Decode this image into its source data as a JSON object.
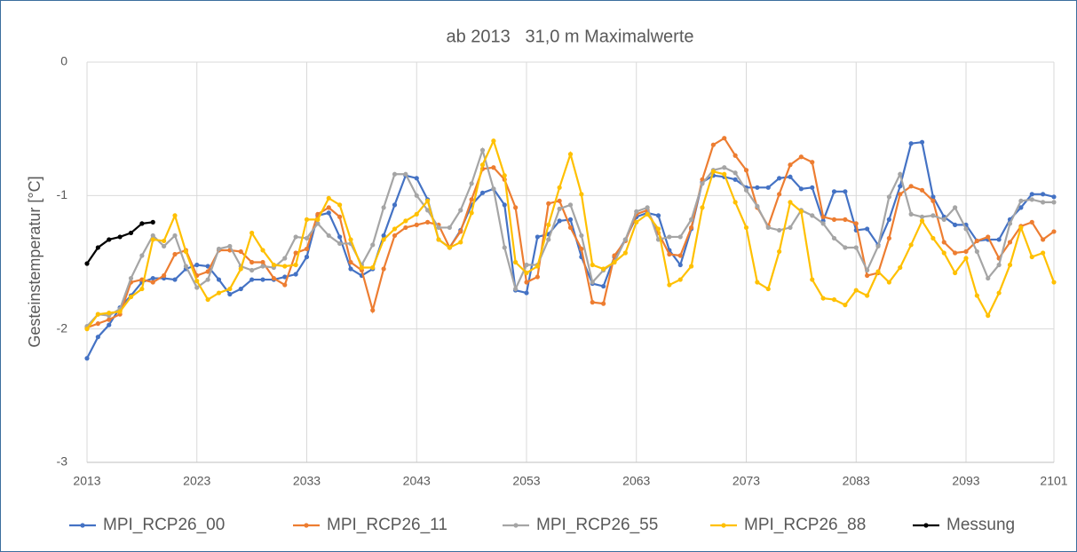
{
  "chart_data": {
    "type": "line",
    "title": "ab 2013   31,0 m Maximalwerte",
    "y_label": "Gesteinstemperatur [°C]",
    "x": [
      2013,
      2014,
      2015,
      2016,
      2017,
      2018,
      2019,
      2020,
      2021,
      2022,
      2023,
      2024,
      2025,
      2026,
      2027,
      2028,
      2029,
      2030,
      2031,
      2032,
      2033,
      2034,
      2035,
      2036,
      2037,
      2038,
      2039,
      2040,
      2041,
      2042,
      2043,
      2044,
      2045,
      2046,
      2047,
      2048,
      2049,
      2050,
      2051,
      2052,
      2053,
      2054,
      2055,
      2056,
      2057,
      2058,
      2059,
      2060,
      2061,
      2062,
      2063,
      2064,
      2065,
      2066,
      2067,
      2068,
      2069,
      2070,
      2071,
      2072,
      2073,
      2074,
      2075,
      2076,
      2077,
      2078,
      2079,
      2080,
      2081,
      2082,
      2083,
      2084,
      2085,
      2086,
      2087,
      2088,
      2089,
      2090,
      2091,
      2092,
      2093,
      2094,
      2095,
      2096,
      2097,
      2098,
      2099,
      2100,
      2101
    ],
    "xlim": [
      2013,
      2101
    ],
    "xticks": [
      2013,
      2023,
      2033,
      2043,
      2053,
      2063,
      2073,
      2083,
      2093,
      2101
    ],
    "ylim": [
      -3,
      0
    ],
    "yticks": [
      -3,
      -2,
      -1,
      0
    ],
    "grid": true,
    "legend": "bottom",
    "series": [
      {
        "name": "MPI_RCP26_00",
        "color": "#4472c4",
        "values": [
          -2.22,
          -2.06,
          -1.97,
          -1.84,
          -1.75,
          -1.65,
          -1.62,
          -1.62,
          -1.63,
          -1.55,
          -1.52,
          -1.53,
          -1.63,
          -1.74,
          -1.7,
          -1.63,
          -1.63,
          -1.63,
          -1.61,
          -1.59,
          -1.46,
          -1.15,
          -1.13,
          -1.31,
          -1.55,
          -1.6,
          -1.55,
          -1.3,
          -1.07,
          -0.85,
          -0.87,
          -1.03,
          -1.33,
          -1.39,
          -1.26,
          -1.07,
          -0.98,
          -0.95,
          -1.07,
          -1.71,
          -1.73,
          -1.31,
          -1.29,
          -1.19,
          -1.18,
          -1.46,
          -1.66,
          -1.68,
          -1.46,
          -1.33,
          -1.16,
          -1.13,
          -1.15,
          -1.41,
          -1.52,
          -1.25,
          -0.9,
          -0.85,
          -0.86,
          -0.88,
          -0.94,
          -0.94,
          -0.94,
          -0.87,
          -0.86,
          -0.95,
          -0.94,
          -1.19,
          -0.97,
          -0.97,
          -1.26,
          -1.25,
          -1.37,
          -1.18,
          -0.93,
          -0.61,
          -0.6,
          -1.01,
          -1.16,
          -1.22,
          -1.22,
          -1.34,
          -1.33,
          -1.33,
          -1.18,
          -1.09,
          -0.99,
          -0.99,
          -1.01
        ]
      },
      {
        "name": "MPI_RCP26_11",
        "color": "#ed7d31",
        "values": [
          -1.99,
          -1.96,
          -1.93,
          -1.89,
          -1.65,
          -1.63,
          -1.65,
          -1.6,
          -1.44,
          -1.41,
          -1.6,
          -1.57,
          -1.41,
          -1.41,
          -1.42,
          -1.5,
          -1.5,
          -1.62,
          -1.67,
          -1.43,
          -1.4,
          -1.14,
          -1.09,
          -1.16,
          -1.5,
          -1.56,
          -1.86,
          -1.55,
          -1.3,
          -1.24,
          -1.22,
          -1.2,
          -1.22,
          -1.39,
          -1.27,
          -1.03,
          -0.8,
          -0.79,
          -0.88,
          -1.09,
          -1.65,
          -1.61,
          -1.06,
          -1.04,
          -1.24,
          -1.4,
          -1.8,
          -1.81,
          -1.45,
          -1.34,
          -1.14,
          -1.11,
          -1.28,
          -1.44,
          -1.45,
          -1.24,
          -0.88,
          -0.62,
          -0.57,
          -0.7,
          -0.81,
          -1.09,
          -1.23,
          -0.99,
          -0.77,
          -0.71,
          -0.75,
          -1.16,
          -1.18,
          -1.18,
          -1.21,
          -1.6,
          -1.58,
          -1.32,
          -0.99,
          -0.93,
          -0.96,
          -1.04,
          -1.35,
          -1.43,
          -1.42,
          -1.34,
          -1.31,
          -1.47,
          -1.35,
          -1.23,
          -1.2,
          -1.33,
          -1.27
        ]
      },
      {
        "name": "MPI_RCP26_55",
        "color": "#a5a5a5",
        "values": [
          -1.98,
          -1.89,
          -1.9,
          -1.85,
          -1.62,
          -1.45,
          -1.3,
          -1.38,
          -1.3,
          -1.53,
          -1.69,
          -1.63,
          -1.4,
          -1.38,
          -1.53,
          -1.56,
          -1.53,
          -1.54,
          -1.47,
          -1.31,
          -1.32,
          -1.21,
          -1.3,
          -1.36,
          -1.36,
          -1.52,
          -1.37,
          -1.09,
          -0.84,
          -0.84,
          -1.0,
          -1.11,
          -1.24,
          -1.24,
          -1.11,
          -0.91,
          -0.66,
          -0.95,
          -1.39,
          -1.7,
          -1.52,
          -1.52,
          -1.33,
          -1.1,
          -1.07,
          -1.3,
          -1.65,
          -1.56,
          -1.5,
          -1.33,
          -1.12,
          -1.09,
          -1.33,
          -1.31,
          -1.31,
          -1.18,
          -0.91,
          -0.81,
          -0.79,
          -0.83,
          -0.96,
          -1.08,
          -1.24,
          -1.26,
          -1.24,
          -1.11,
          -1.15,
          -1.21,
          -1.32,
          -1.39,
          -1.39,
          -1.56,
          -1.38,
          -1.01,
          -0.84,
          -1.14,
          -1.16,
          -1.15,
          -1.18,
          -1.09,
          -1.25,
          -1.42,
          -1.62,
          -1.52,
          -1.21,
          -1.04,
          -1.03,
          -1.05,
          -1.05
        ]
      },
      {
        "name": "MPI_RCP26_88",
        "color": "#ffc000",
        "values": [
          -2.0,
          -1.89,
          -1.88,
          -1.87,
          -1.76,
          -1.7,
          -1.33,
          -1.34,
          -1.15,
          -1.42,
          -1.64,
          -1.78,
          -1.73,
          -1.7,
          -1.55,
          -1.28,
          -1.41,
          -1.52,
          -1.53,
          -1.52,
          -1.18,
          -1.18,
          -1.02,
          -1.07,
          -1.33,
          -1.54,
          -1.54,
          -1.33,
          -1.25,
          -1.19,
          -1.14,
          -1.04,
          -1.33,
          -1.39,
          -1.35,
          -1.13,
          -0.77,
          -0.59,
          -0.85,
          -1.5,
          -1.58,
          -1.53,
          -1.22,
          -0.94,
          -0.69,
          -0.99,
          -1.52,
          -1.55,
          -1.5,
          -1.43,
          -1.2,
          -1.14,
          -1.25,
          -1.67,
          -1.63,
          -1.53,
          -1.09,
          -0.82,
          -0.84,
          -1.05,
          -1.24,
          -1.65,
          -1.7,
          -1.42,
          -1.05,
          -1.12,
          -1.63,
          -1.77,
          -1.78,
          -1.82,
          -1.71,
          -1.75,
          -1.57,
          -1.65,
          -1.54,
          -1.37,
          -1.19,
          -1.32,
          -1.43,
          -1.58,
          -1.47,
          -1.75,
          -1.9,
          -1.73,
          -1.52,
          -1.24,
          -1.46,
          -1.43,
          -1.65
        ]
      },
      {
        "name": "Messung",
        "color": "#000000",
        "x": [
          2013,
          2014,
          2015,
          2016,
          2017,
          2018,
          2019
        ],
        "values": [
          -1.51,
          -1.39,
          -1.33,
          -1.31,
          -1.28,
          -1.21,
          -1.2
        ]
      }
    ]
  }
}
